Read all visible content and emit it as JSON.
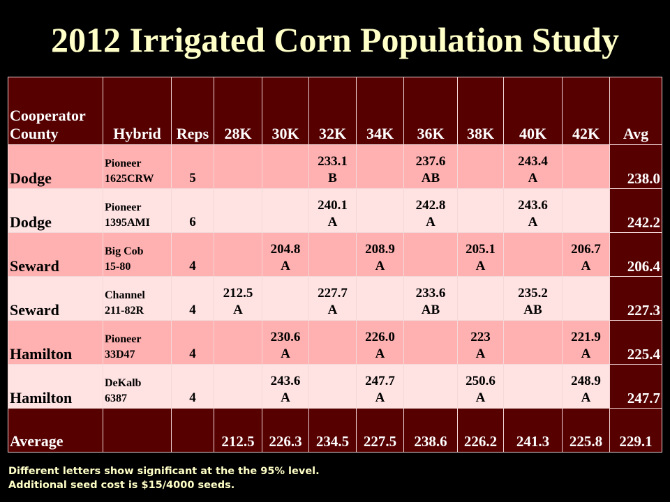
{
  "title": "2012 Irrigated Corn Population Study",
  "headers": [
    "Cooperator County",
    "Hybrid",
    "Reps",
    "28K",
    "30K",
    "32K",
    "34K",
    "36K",
    "38K",
    "40K",
    "42K",
    "Avg"
  ],
  "header_line1": "Cooperator",
  "header_line2": "County",
  "rows": [
    {
      "county": "Dodge",
      "hybrid": [
        "Pioneer",
        "1625CRW"
      ],
      "reps": "5",
      "cells": [
        null,
        null,
        {
          "value": "233.1",
          "letter": "B"
        },
        null,
        {
          "value": "237.6",
          "letter": "AB"
        },
        null,
        {
          "value": "243.4",
          "letter": "A"
        },
        null
      ],
      "avg": "238.0"
    },
    {
      "county": "Dodge",
      "hybrid": [
        "Pioneer",
        "1395AMI"
      ],
      "reps": "6",
      "cells": [
        null,
        null,
        {
          "value": "240.1",
          "letter": "A"
        },
        null,
        {
          "value": "242.8",
          "letter": "A"
        },
        null,
        {
          "value": "243.6",
          "letter": "A"
        },
        null
      ],
      "avg": "242.2"
    },
    {
      "county": "Seward",
      "hybrid": [
        "Big Cob",
        "15-80"
      ],
      "reps": "4",
      "cells": [
        null,
        {
          "value": "204.8",
          "letter": "A"
        },
        null,
        {
          "value": "208.9",
          "letter": "A"
        },
        null,
        {
          "value": "205.1",
          "letter": "A"
        },
        null,
        {
          "value": "206.7",
          "letter": "A"
        }
      ],
      "avg": "206.4"
    },
    {
      "county": "Seward",
      "hybrid": [
        "Channel",
        "211-82R"
      ],
      "reps": "4",
      "cells": [
        {
          "value": "212.5",
          "letter": "A"
        },
        null,
        {
          "value": "227.7",
          "letter": "A"
        },
        null,
        {
          "value": "233.6",
          "letter": "AB"
        },
        null,
        {
          "value": "235.2",
          "letter": "AB"
        },
        null
      ],
      "avg": "227.3"
    },
    {
      "county": "Hamilton",
      "hybrid": [
        "Pioneer",
        "33D47"
      ],
      "reps": "4",
      "cells": [
        null,
        {
          "value": "230.6",
          "letter": "A"
        },
        null,
        {
          "value": "226.0",
          "letter": "A"
        },
        null,
        {
          "value": "223",
          "letter": "A"
        },
        null,
        {
          "value": "221.9",
          "letter": "A"
        }
      ],
      "avg": "225.4"
    },
    {
      "county": "Hamilton",
      "hybrid": [
        "DeKalb",
        "6387"
      ],
      "reps": "4",
      "cells": [
        null,
        {
          "value": "243.6",
          "letter": "A"
        },
        null,
        {
          "value": "247.7",
          "letter": "A"
        },
        null,
        {
          "value": "250.6",
          "letter": "A"
        },
        null,
        {
          "value": "248.9",
          "letter": "A"
        }
      ],
      "avg": "247.7"
    }
  ],
  "average_row": {
    "label": "Average",
    "values": [
      "212.5",
      "226.3",
      "234.5",
      "227.5",
      "238.6",
      "226.2",
      "241.3",
      "225.8"
    ],
    "avg": "229.1"
  },
  "footnotes": [
    "Different letters show significant at the the 95% level.",
    "Additional seed cost is $15/4000 seeds."
  ]
}
